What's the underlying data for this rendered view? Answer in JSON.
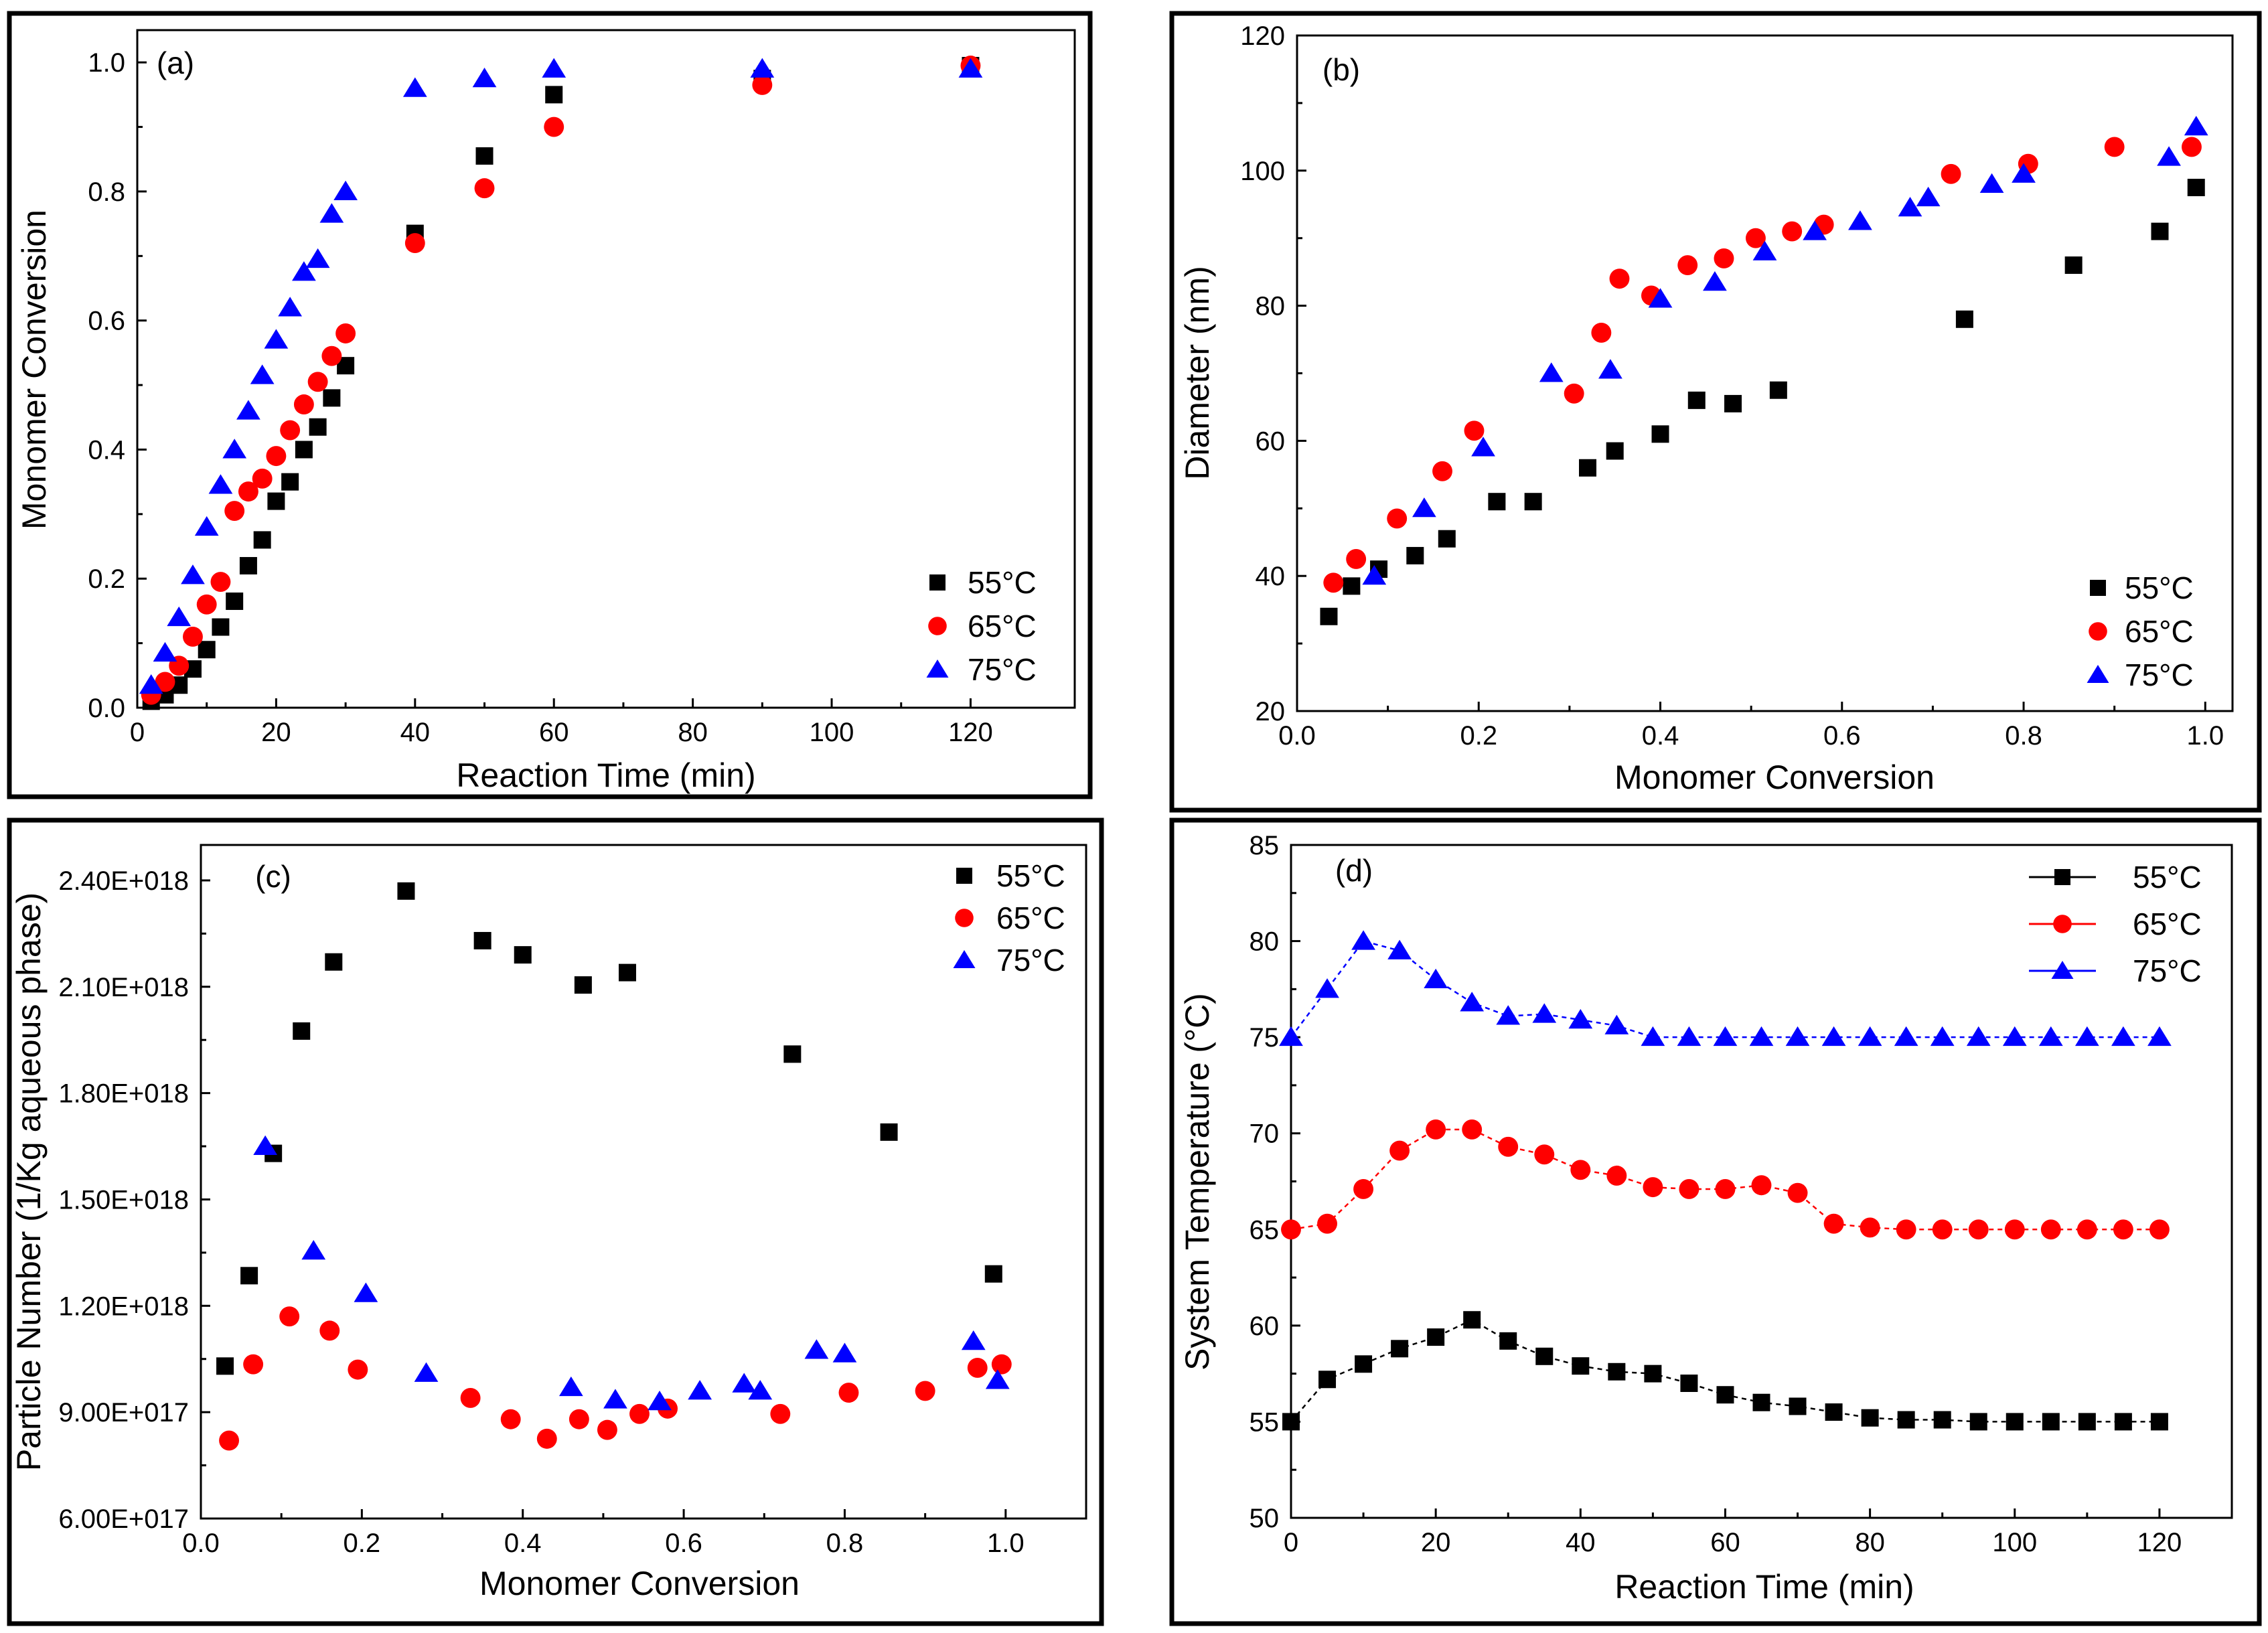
{
  "colors": {
    "55C": "#000000",
    "65C": "#ff0000",
    "75C": "#0000ff"
  },
  "chart_data": [
    {
      "id": "a",
      "type": "scatter",
      "panel_label": "(a)",
      "xlabel": "Reaction Time (min)",
      "ylabel": "Monomer Conversion",
      "xlim": [
        0,
        135
      ],
      "ylim": [
        0,
        1.05
      ],
      "xticks": [
        0,
        20,
        40,
        60,
        80,
        100,
        120
      ],
      "xtick_labels": [
        "0",
        "20",
        "40",
        "60",
        "80",
        "100",
        "120"
      ],
      "yticks": [
        0,
        0.2,
        0.4,
        0.6,
        0.8,
        1.0
      ],
      "ytick_labels": [
        "0.0",
        "0.2",
        "0.4",
        "0.6",
        "0.8",
        "1.0"
      ],
      "legend_position": "bottom-right",
      "series": [
        {
          "name": "55°C",
          "marker": "square",
          "color": "#000000",
          "x": [
            2,
            4,
            6,
            8,
            10,
            12,
            14,
            16,
            18,
            20,
            22,
            24,
            26,
            28,
            30,
            40,
            50,
            60,
            90,
            120
          ],
          "y": [
            0.01,
            0.02,
            0.035,
            0.06,
            0.09,
            0.125,
            0.165,
            0.22,
            0.26,
            0.32,
            0.35,
            0.4,
            0.435,
            0.48,
            0.53,
            0.735,
            0.855,
            0.95,
            0.975,
            0.995
          ]
        },
        {
          "name": "65°C",
          "marker": "circle",
          "color": "#ff0000",
          "x": [
            2,
            4,
            6,
            8,
            10,
            12,
            14,
            16,
            18,
            20,
            22,
            24,
            26,
            28,
            30,
            40,
            50,
            60,
            90,
            120
          ],
          "y": [
            0.02,
            0.04,
            0.065,
            0.11,
            0.16,
            0.195,
            0.305,
            0.335,
            0.355,
            0.39,
            0.43,
            0.47,
            0.505,
            0.545,
            0.58,
            0.72,
            0.805,
            0.9,
            0.965,
            0.995
          ]
        },
        {
          "name": "75°C",
          "marker": "triangle",
          "color": "#0000ff",
          "x": [
            2,
            4,
            6,
            8,
            10,
            12,
            14,
            16,
            18,
            20,
            22,
            24,
            26,
            28,
            30,
            40,
            50,
            60,
            90,
            120
          ],
          "y": [
            0.035,
            0.085,
            0.14,
            0.205,
            0.28,
            0.345,
            0.4,
            0.46,
            0.515,
            0.57,
            0.62,
            0.675,
            0.695,
            0.765,
            0.8,
            0.96,
            0.975,
            0.99,
            0.99,
            0.99
          ]
        }
      ]
    },
    {
      "id": "b",
      "type": "scatter",
      "panel_label": "(b)",
      "xlabel": "Monomer Conversion",
      "ylabel": "Diameter (nm)",
      "xlim": [
        0,
        1.03
      ],
      "ylim": [
        20,
        120
      ],
      "xticks": [
        0,
        0.2,
        0.4,
        0.6,
        0.8,
        1.0
      ],
      "xtick_labels": [
        "0.0",
        "0.2",
        "0.4",
        "0.6",
        "0.8",
        "1.0"
      ],
      "yticks": [
        20,
        40,
        60,
        80,
        100,
        120
      ],
      "ytick_labels": [
        "20",
        "40",
        "60",
        "80",
        "100",
        "120"
      ],
      "legend_position": "bottom-right",
      "series": [
        {
          "name": "55°C",
          "marker": "square",
          "color": "#000000",
          "x": [
            0.035,
            0.06,
            0.09,
            0.13,
            0.165,
            0.22,
            0.26,
            0.32,
            0.35,
            0.4,
            0.44,
            0.48,
            0.53,
            0.735,
            0.855,
            0.95,
            0.99
          ],
          "y": [
            34,
            38.5,
            41,
            43,
            45.5,
            51,
            51,
            56,
            58.5,
            61,
            66,
            65.5,
            67.5,
            78,
            86,
            91,
            97.5
          ]
        },
        {
          "name": "65°C",
          "marker": "circle",
          "color": "#ff0000",
          "x": [
            0.04,
            0.065,
            0.11,
            0.16,
            0.195,
            0.305,
            0.335,
            0.355,
            0.39,
            0.43,
            0.47,
            0.505,
            0.545,
            0.58,
            0.72,
            0.805,
            0.9,
            0.985
          ],
          "y": [
            39,
            42.5,
            48.5,
            55.5,
            61.5,
            67,
            76,
            84,
            81.5,
            86,
            87,
            90,
            91,
            92,
            99.5,
            101,
            103.5,
            103.5
          ]
        },
        {
          "name": "75°C",
          "marker": "triangle",
          "color": "#0000ff",
          "x": [
            0.085,
            0.14,
            0.205,
            0.28,
            0.345,
            0.4,
            0.46,
            0.515,
            0.57,
            0.62,
            0.675,
            0.695,
            0.765,
            0.8,
            0.96,
            0.99
          ],
          "y": [
            40,
            50,
            59,
            70,
            70.5,
            81,
            83.5,
            88,
            91,
            92.5,
            94.5,
            96,
            98,
            99.5,
            102,
            106.5
          ]
        }
      ]
    },
    {
      "id": "c",
      "type": "scatter",
      "panel_label": "(c)",
      "xlabel": "Monomer Conversion",
      "ylabel": "Particle Number (1/Kg aqueous phase)",
      "xlim": [
        0,
        1.1
      ],
      "ylim": [
        6e+17,
        2.5e+18
      ],
      "xticks": [
        0,
        0.2,
        0.4,
        0.6,
        0.8,
        1.0
      ],
      "xtick_labels": [
        "0.0",
        "0.2",
        "0.4",
        "0.6",
        "0.8",
        "1.0"
      ],
      "yticks": [
        6e+17,
        9e+17,
        1.2e+18,
        1.5e+18,
        1.8e+18,
        2.1e+18,
        2.4e+18
      ],
      "ytick_labels": [
        "6.00E+017",
        "9.00E+017",
        "1.20E+018",
        "1.50E+018",
        "1.80E+018",
        "2.10E+018",
        "2.40E+018"
      ],
      "legend_position": "top-right",
      "series": [
        {
          "name": "55°C",
          "marker": "square",
          "color": "#000000",
          "x": [
            0.03,
            0.06,
            0.09,
            0.125,
            0.165,
            0.255,
            0.35,
            0.4,
            0.475,
            0.53,
            0.735,
            0.855,
            0.985
          ],
          "y": [
            1.03e+18,
            1.285e+18,
            1.63e+18,
            1.975e+18,
            2.17e+18,
            2.37e+18,
            2.23e+18,
            2.19e+18,
            2.105e+18,
            2.14e+18,
            1.91e+18,
            1.69e+18,
            1.29e+18
          ]
        },
        {
          "name": "65°C",
          "marker": "circle",
          "color": "#ff0000",
          "x": [
            0.035,
            0.065,
            0.11,
            0.16,
            0.195,
            0.335,
            0.385,
            0.43,
            0.47,
            0.505,
            0.545,
            0.58,
            0.72,
            0.805,
            0.9,
            0.965,
            0.995
          ],
          "y": [
            8.2e+17,
            1.035e+18,
            1.17e+18,
            1.13e+18,
            1.02e+18,
            9.4e+17,
            8.8e+17,
            8.25e+17,
            8.8e+17,
            8.5e+17,
            8.95e+17,
            9.1e+17,
            8.95e+17,
            9.55e+17,
            9.6e+17,
            1.025e+18,
            1.035e+18
          ]
        },
        {
          "name": "75°C",
          "marker": "triangle",
          "color": "#0000ff",
          "x": [
            0.08,
            0.14,
            0.205,
            0.28,
            0.46,
            0.515,
            0.57,
            0.62,
            0.675,
            0.695,
            0.765,
            0.8,
            0.96,
            0.99
          ],
          "y": [
            1.65e+18,
            1.355e+18,
            1.235e+18,
            1.01e+18,
            9.7e+17,
            9.35e+17,
            9.3e+17,
            9.6e+17,
            9.8e+17,
            9.6e+17,
            1.075e+18,
            1.065e+18,
            1.1e+18,
            9.9e+17
          ]
        }
      ]
    },
    {
      "id": "d",
      "type": "line",
      "panel_label": "(d)",
      "xlabel": "Reaction Time (min)",
      "ylabel": "System Temperature (°C)",
      "xlim": [
        0,
        130
      ],
      "ylim": [
        50,
        85
      ],
      "xticks": [
        0,
        20,
        40,
        60,
        80,
        100,
        120
      ],
      "xtick_labels": [
        "0",
        "20",
        "40",
        "60",
        "80",
        "100",
        "120"
      ],
      "yticks": [
        50,
        55,
        60,
        65,
        70,
        75,
        80,
        85
      ],
      "ytick_labels": [
        "50",
        "55",
        "60",
        "65",
        "70",
        "75",
        "80",
        "85"
      ],
      "legend_position": "top-right",
      "series": [
        {
          "name": "55°C",
          "marker": "square",
          "color": "#000000",
          "x": [
            0,
            5,
            10,
            15,
            20,
            25,
            30,
            35,
            40,
            45,
            50,
            55,
            60,
            65,
            70,
            75,
            80,
            85,
            90,
            95,
            100,
            105,
            110,
            115,
            120
          ],
          "y": [
            55,
            57.2,
            58,
            58.8,
            59.4,
            60.3,
            59.2,
            58.4,
            57.9,
            57.6,
            57.5,
            57,
            56.4,
            56,
            55.8,
            55.5,
            55.2,
            55.1,
            55.1,
            55,
            55,
            55,
            55,
            55,
            55
          ]
        },
        {
          "name": "65°C",
          "marker": "circle",
          "color": "#ff0000",
          "x": [
            0,
            5,
            10,
            15,
            20,
            25,
            30,
            35,
            40,
            45,
            50,
            55,
            60,
            65,
            70,
            75,
            80,
            85,
            90,
            95,
            100,
            105,
            110,
            115,
            120
          ],
          "y": [
            65,
            65.3,
            67.1,
            69.1,
            70.2,
            70.2,
            69.3,
            68.9,
            68.1,
            67.8,
            67.2,
            67.1,
            67.1,
            67.3,
            66.9,
            65.3,
            65.1,
            65,
            65,
            65,
            65,
            65,
            65,
            65,
            65
          ]
        },
        {
          "name": "75°C",
          "marker": "triangle",
          "color": "#0000ff",
          "x": [
            0,
            5,
            10,
            15,
            20,
            25,
            30,
            35,
            40,
            45,
            50,
            55,
            60,
            65,
            70,
            75,
            80,
            85,
            90,
            95,
            100,
            105,
            110,
            115,
            120
          ],
          "y": [
            75,
            77.5,
            80,
            79.5,
            78,
            76.8,
            76.1,
            76.2,
            75.9,
            75.6,
            75,
            75,
            75,
            75,
            75,
            75,
            75,
            75,
            75,
            75,
            75,
            75,
            75,
            75,
            75
          ]
        }
      ]
    }
  ]
}
